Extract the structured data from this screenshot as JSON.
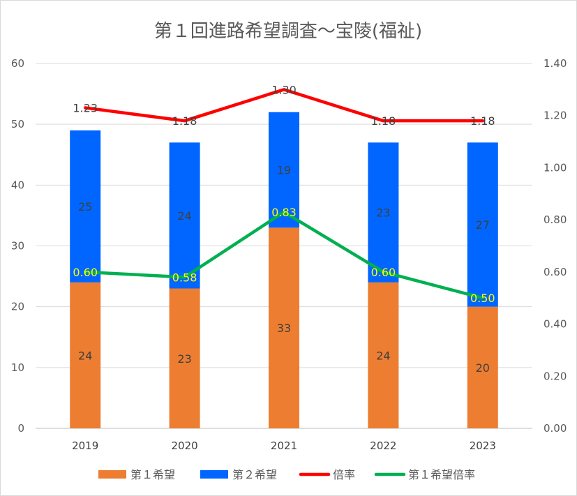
{
  "chart_data": {
    "type": "bar",
    "title": "第１回進路希望調査～宝陵(福祉)",
    "categories": [
      "2019",
      "2020",
      "2021",
      "2022",
      "2023"
    ],
    "series": [
      {
        "name": "第１希望",
        "type": "bar",
        "stack": "main",
        "axis": "left",
        "color": "#ed7d31",
        "values": [
          24,
          23,
          33,
          24,
          20
        ]
      },
      {
        "name": "第２希望",
        "type": "bar",
        "stack": "main",
        "axis": "left",
        "color": "#0066ff",
        "values": [
          25,
          24,
          19,
          23,
          27
        ]
      },
      {
        "name": "倍率",
        "type": "line",
        "axis": "right",
        "color": "#ff0000",
        "values": [
          1.23,
          1.18,
          1.3,
          1.18,
          1.18
        ],
        "value_labels": [
          "1.23",
          "1.18",
          "1.30",
          "1.18",
          "1.18"
        ]
      },
      {
        "name": "第１希望倍率",
        "type": "line",
        "axis": "right",
        "color": "#00b050",
        "values": [
          0.6,
          0.58,
          0.83,
          0.6,
          0.5
        ],
        "value_labels": [
          "0.60",
          "0.58",
          "0.83",
          "0.60",
          "0.50"
        ]
      }
    ],
    "y_left": {
      "min": 0,
      "max": 60,
      "ticks": [
        "0",
        "10",
        "20",
        "30",
        "40",
        "50",
        "60"
      ]
    },
    "y_right": {
      "min": 0,
      "max": 1.4,
      "ticks": [
        "0.00",
        "0.20",
        "0.40",
        "0.60",
        "0.80",
        "1.00",
        "1.20",
        "1.40"
      ]
    },
    "grid": true,
    "legend_position": "bottom"
  }
}
